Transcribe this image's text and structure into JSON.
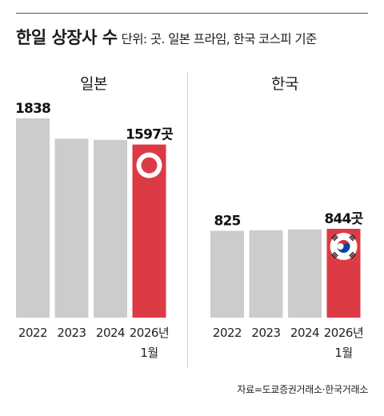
{
  "header": {
    "title": "한일 상장사 수",
    "subtitle": "단위: 곳. 일본 프라임, 한국 코스피 기준"
  },
  "source": "자료=도쿄증권거래소·한국거래소",
  "colors": {
    "bar": "#cccccc",
    "highlight": "#dc3b45"
  },
  "chart_data": [
    {
      "type": "bar",
      "title": "일본",
      "categories": [
        "2022",
        "2023",
        "2024",
        "2026년 1월"
      ],
      "values": [
        1838,
        1650,
        1640,
        1597
      ],
      "data_labels": [
        "1838",
        "",
        "",
        "1597곳"
      ],
      "highlight_index": 3,
      "flag": "japan-flag"
    },
    {
      "type": "bar",
      "title": "한국",
      "categories": [
        "2022",
        "2023",
        "2024",
        "2026년 1월"
      ],
      "values": [
        825,
        830,
        838,
        844
      ],
      "data_labels": [
        "825",
        "",
        "",
        "844곳"
      ],
      "highlight_index": 3,
      "flag": "korea-flag"
    }
  ]
}
